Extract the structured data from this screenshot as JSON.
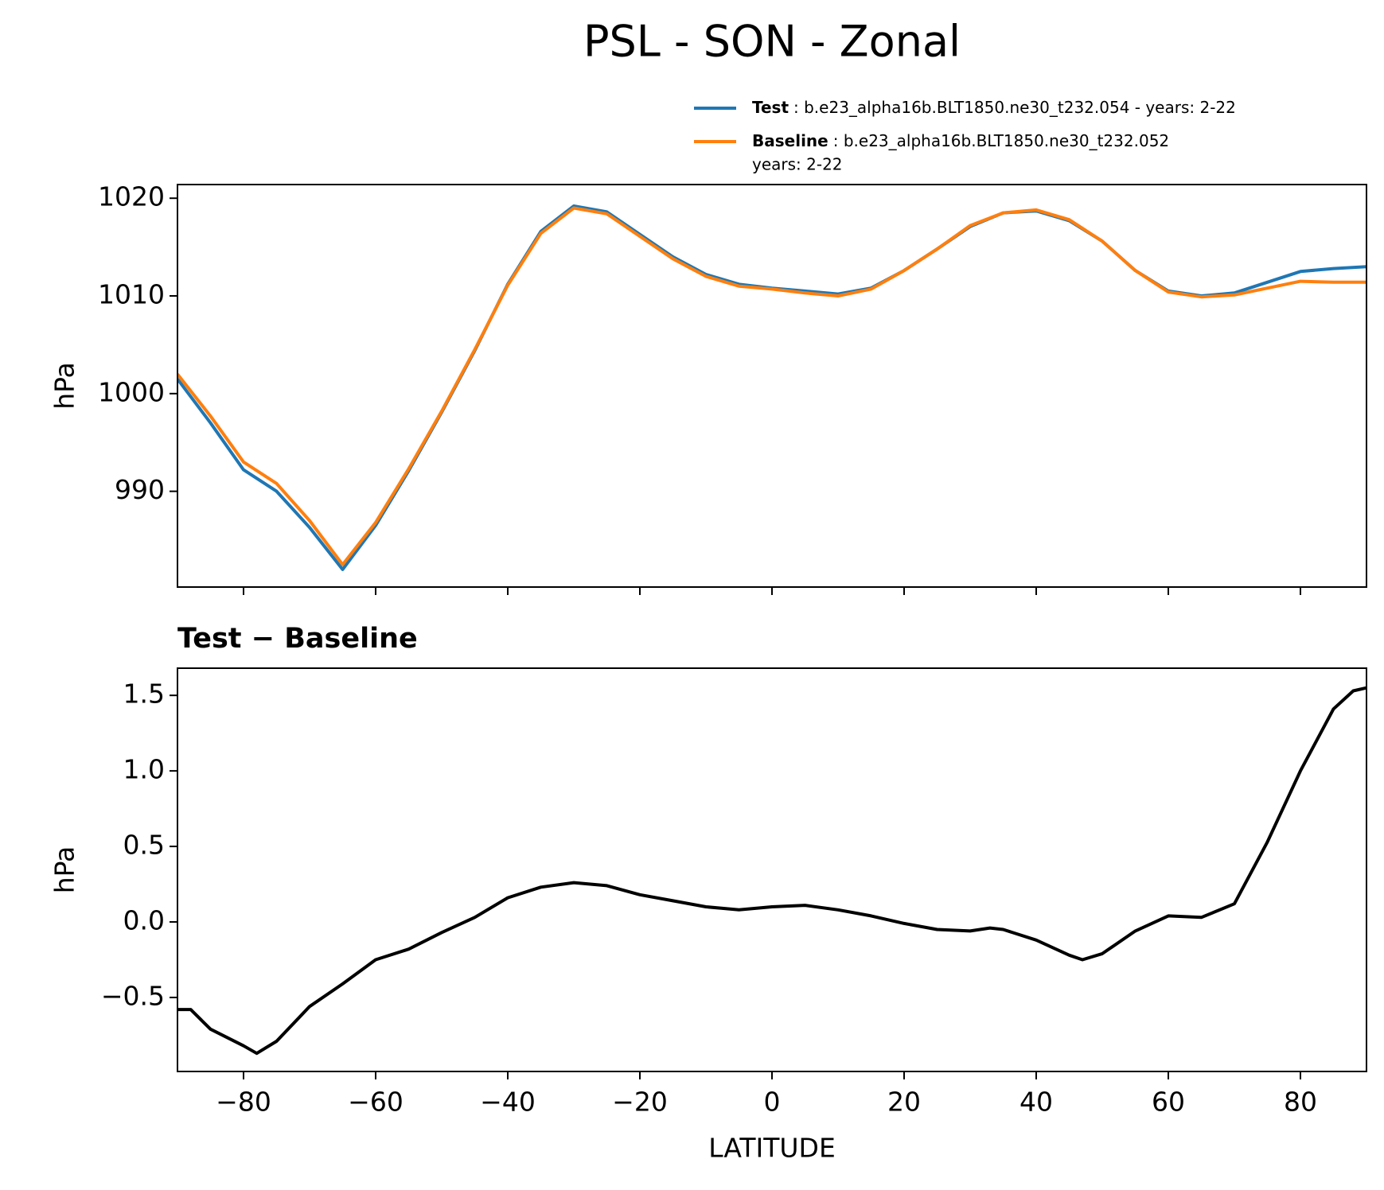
{
  "title": "PSL - SON - Zonal",
  "chart_data": [
    {
      "type": "line",
      "ylabel": "hPa",
      "x": [
        -90,
        -85,
        -80,
        -75,
        -70,
        -65,
        -60,
        -55,
        -50,
        -45,
        -40,
        -35,
        -30,
        -25,
        -20,
        -15,
        -10,
        -5,
        0,
        5,
        10,
        15,
        20,
        25,
        30,
        35,
        40,
        45,
        50,
        55,
        60,
        65,
        70,
        75,
        80,
        85,
        90
      ],
      "series": [
        {
          "name": "Test",
          "description": [
            ": b.e23_alpha16b.BLT1850.ne30_t232.054 - years: 2-22"
          ],
          "color": "#1f77b4",
          "values": [
            1001.5,
            997,
            992.2,
            990,
            986.3,
            982.0,
            986.5,
            992.1,
            998.1,
            1004.4,
            1011.2,
            1016.6,
            1019.2,
            1018.6,
            1016.3,
            1014.0,
            1012.2,
            1011.2,
            1010.8,
            1010.5,
            1010.2,
            1010.8,
            1012.6,
            1014.8,
            1017.1,
            1018.5,
            1018.7,
            1017.7,
            1015.6,
            1012.6,
            1010.5,
            1010.0,
            1010.3,
            1011.4,
            1012.5,
            1012.8,
            1013.0
          ]
        },
        {
          "name": "Baseline",
          "description": [
            ": b.e23_alpha16b.BLT1850.ne30_t232.052",
            "years: 2-22"
          ],
          "color": "#ff7f0e",
          "values": [
            1002,
            997.7,
            993,
            990.8,
            987,
            982.5,
            986.8,
            992.3,
            998.2,
            1004.5,
            1011.1,
            1016.4,
            1019.0,
            1018.4,
            1016.1,
            1013.8,
            1012.0,
            1011.0,
            1010.7,
            1010.3,
            1010.0,
            1010.7,
            1012.6,
            1014.8,
            1017.2,
            1018.5,
            1018.8,
            1017.8,
            1015.6,
            1012.6,
            1010.4,
            1009.9,
            1010.1,
            1010.8,
            1011.5,
            1011.4,
            1011.4
          ]
        }
      ],
      "xlim": [
        -90,
        90
      ],
      "ylim": [
        980.2,
        1021.4
      ],
      "yticks": [
        990,
        1000,
        1010,
        1020
      ]
    },
    {
      "type": "line",
      "title": "Test − Baseline",
      "ylabel": "hPa",
      "xlabel": "LATITUDE",
      "x": [
        -90,
        -88,
        -85,
        -80,
        -78,
        -75,
        -70,
        -65,
        -60,
        -55,
        -50,
        -45,
        -40,
        -35,
        -30,
        -25,
        -20,
        -15,
        -10,
        -5,
        0,
        5,
        10,
        15,
        20,
        25,
        30,
        33,
        35,
        40,
        45,
        47,
        50,
        55,
        60,
        65,
        70,
        75,
        80,
        85,
        88,
        90
      ],
      "series": [
        {
          "name": "Test − Baseline",
          "color": "#000000",
          "values": [
            -0.58,
            -0.58,
            -0.71,
            -0.82,
            -0.87,
            -0.79,
            -0.56,
            -0.41,
            -0.25,
            -0.18,
            -0.07,
            0.03,
            0.16,
            0.23,
            0.26,
            0.24,
            0.18,
            0.14,
            0.1,
            0.08,
            0.1,
            0.11,
            0.08,
            0.04,
            -0.01,
            -0.05,
            -0.06,
            -0.04,
            -0.05,
            -0.12,
            -0.22,
            -0.25,
            -0.21,
            -0.06,
            0.04,
            0.03,
            0.12,
            0.53,
            1.0,
            1.41,
            1.53,
            1.55
          ]
        }
      ],
      "xlim": [
        -90,
        90
      ],
      "ylim": [
        -0.99,
        1.68
      ],
      "xticks": [
        {
          "value": -80,
          "label": "−80"
        },
        {
          "value": -60,
          "label": "−60"
        },
        {
          "value": -40,
          "label": "−40"
        },
        {
          "value": -20,
          "label": "−20"
        },
        0,
        20,
        40,
        60,
        80
      ],
      "yticks": [
        {
          "value": -0.5,
          "label": "−0.5"
        },
        {
          "value": 0,
          "label": "0.0"
        },
        0.5,
        {
          "value": 1,
          "label": "1.0"
        },
        1.5
      ]
    }
  ]
}
